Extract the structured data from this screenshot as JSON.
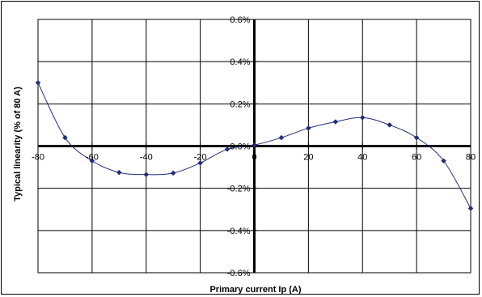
{
  "chart_data": {
    "type": "line",
    "title": "",
    "xlabel": "Primary current Ip (A)",
    "ylabel": "Typical linearity (% of 80 A)",
    "xlim": [
      -80,
      80
    ],
    "ylim": [
      -0.6,
      0.6
    ],
    "x_ticks": [
      -80,
      -60,
      -40,
      -20,
      0,
      20,
      40,
      60,
      80
    ],
    "x_tick_labels": [
      "-80",
      "-60",
      "-40",
      "-20",
      "0",
      "20",
      "40",
      "60",
      "80"
    ],
    "y_ticks": [
      0.6,
      0.4,
      0.2,
      0.0,
      -0.2,
      -0.4,
      -0.6
    ],
    "y_tick_labels": [
      "0.6%",
      "0.4%",
      "0.2%",
      "0.0%",
      "-0.2%",
      "-0.4%",
      "-0.6%"
    ],
    "grid": true,
    "series": [
      {
        "color": "#1f2d7a",
        "marker": "diamond",
        "x": [
          -80,
          -70,
          -60,
          -50,
          -40,
          -30,
          -20,
          -10,
          0,
          10,
          20,
          30,
          40,
          50,
          60,
          70,
          80
        ],
        "y": [
          0.3,
          0.04,
          -0.07,
          -0.125,
          -0.135,
          -0.128,
          -0.08,
          -0.015,
          0.005,
          0.04,
          0.085,
          0.115,
          0.135,
          0.1,
          0.04,
          -0.07,
          -0.295
        ]
      }
    ]
  }
}
